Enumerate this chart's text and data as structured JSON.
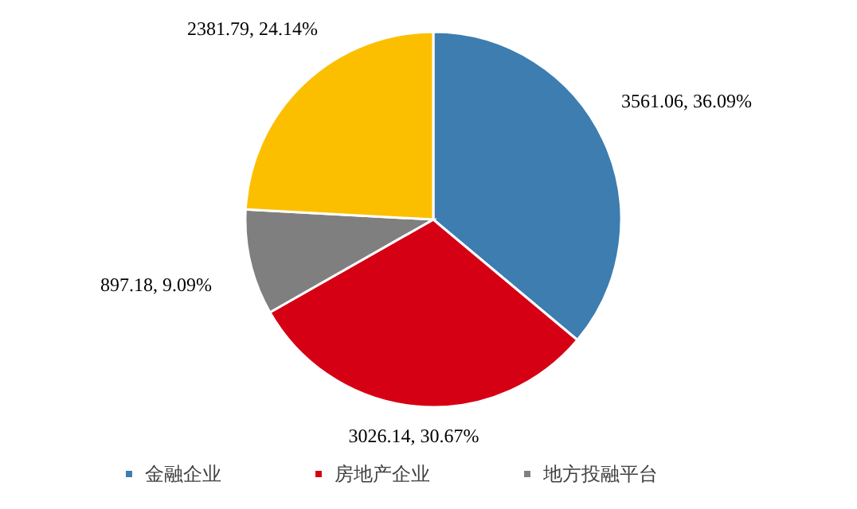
{
  "chart_data": {
    "type": "pie",
    "categories": [
      "金融企业",
      "房地产企业",
      "地方投融平台",
      null
    ],
    "values": [
      3561.06,
      3026.14,
      897.18,
      2381.79
    ],
    "value_labels": [
      "3561.06, 36.09%",
      "3026.14, 30.67%",
      "897.18, 9.09%",
      "2381.79, 24.14%"
    ],
    "colors": [
      "#3d7db0",
      "#d60014",
      "#7f7f7f",
      "#fcbf00"
    ],
    "legend": "bottom"
  }
}
